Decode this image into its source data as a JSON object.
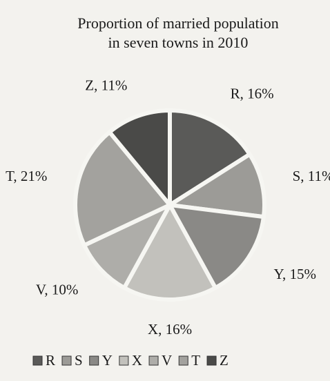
{
  "chart_data": {
    "type": "pie",
    "title": [
      "Proportion of married population",
      "in seven towns in 2010"
    ],
    "categories": [
      "R",
      "S",
      "Y",
      "X",
      "V",
      "T",
      "Z"
    ],
    "values": [
      16,
      11,
      15,
      16,
      10,
      21,
      11
    ],
    "value_labels": [
      "R, 16%",
      "S, 11%",
      "Y, 15%",
      "X, 16%",
      "V, 10%",
      "T, 21%",
      "Z, 11%"
    ],
    "colors": [
      "#5a5a58",
      "#9c9b97",
      "#8a8986",
      "#c2c1bc",
      "#aeada9",
      "#a3a29e",
      "#4a4a48"
    ],
    "legend": "bottom"
  }
}
